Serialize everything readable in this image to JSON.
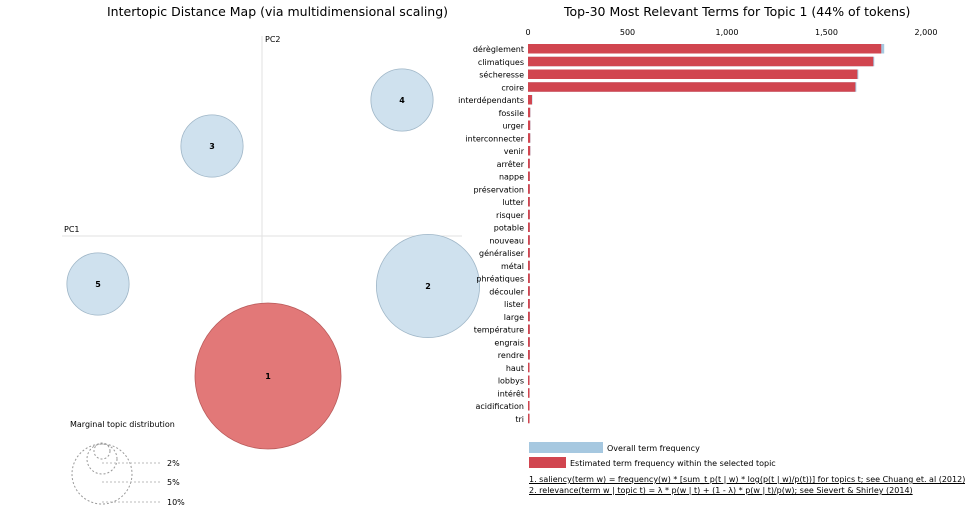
{
  "left_panel": {
    "title": "Intertopic Distance Map (via multidimensional scaling)",
    "pc1_label": "PC1",
    "pc2_label": "PC2",
    "marginal_title": "Marginal topic distribution",
    "marginal_labels": [
      "2%",
      "5%",
      "10%"
    ]
  },
  "right_panel": {
    "title": "Top-30 Most Relevant Terms for Topic 1 (44% of tokens)",
    "legend_overall": "Overall term frequency",
    "legend_estimated": "Estimated term frequency within the selected topic",
    "note1": "1. saliency(term w) = frequency(w) * [sum_t p(t | w) * log(p(t | w)/p(t))] for topics t; see Chuang et. al (2012)",
    "note2": "2. relevance(term w | topic t) = λ * p(w | t) + (1 - λ) * p(w | t)/p(w); see Sievert & Shirley (2014)"
  },
  "colors": {
    "overall": "#a6c8e0",
    "estimated": "#d1454f",
    "selected_topic": "#e27878",
    "topic_fill": "#cfe1ee",
    "topic_stroke": "#9fb6c7",
    "axis": "#e2e2e2"
  },
  "chart_data": [
    {
      "type": "scatter",
      "title": "Intertopic Distance Map (via multidimensional scaling)",
      "xlabel": "PC1",
      "ylabel": "PC2",
      "selected": "1",
      "topics": [
        {
          "label": "1",
          "pc1": 0.03,
          "pc2": -0.7,
          "share": 44,
          "selected": true
        },
        {
          "label": "2",
          "pc1": 0.83,
          "pc2": -0.25,
          "share": 22,
          "selected": false
        },
        {
          "label": "3",
          "pc1": -0.25,
          "pc2": 0.45,
          "share": 8,
          "selected": false
        },
        {
          "label": "4",
          "pc1": 0.7,
          "pc2": 0.68,
          "share": 8,
          "selected": false
        },
        {
          "label": "5",
          "pc1": -0.82,
          "pc2": -0.24,
          "share": 8,
          "selected": false
        }
      ]
    },
    {
      "type": "bar",
      "orientation": "horizontal",
      "title": "Top-30 Most Relevant Terms for Topic 1 (44% of tokens)",
      "xlim": [
        0,
        2000
      ],
      "ticks": [
        "0",
        "500",
        "1,000",
        "1,500",
        "2,000"
      ],
      "tick_values": [
        0,
        500,
        1000,
        1500,
        2000
      ],
      "categories": [
        "dérèglement",
        "climatiques",
        "sécheresse",
        "croire",
        "interdépendants",
        "fossile",
        "urger",
        "interconnecter",
        "venir",
        "arrêter",
        "nappe",
        "préservation",
        "lutter",
        "risquer",
        "potable",
        "nouveau",
        "généraliser",
        "métal",
        "phréatiques",
        "découler",
        "lister",
        "large",
        "température",
        "engrais",
        "rendre",
        "haut",
        "lobbys",
        "intérêt",
        "acidification",
        "tri"
      ],
      "series": [
        {
          "name": "Overall term frequency",
          "values": [
            1790,
            1740,
            1660,
            1650,
            22,
            12,
            12,
            12,
            12,
            10,
            10,
            10,
            10,
            10,
            10,
            10,
            10,
            10,
            10,
            10,
            10,
            10,
            10,
            10,
            10,
            8,
            8,
            8,
            8,
            8
          ]
        },
        {
          "name": "Estimated term frequency within the selected topic",
          "values": [
            1775,
            1735,
            1655,
            1645,
            20,
            11,
            11,
            11,
            11,
            9,
            9,
            9,
            9,
            9,
            9,
            9,
            9,
            9,
            9,
            9,
            9,
            9,
            9,
            9,
            9,
            7,
            7,
            7,
            7,
            7
          ]
        }
      ]
    }
  ]
}
